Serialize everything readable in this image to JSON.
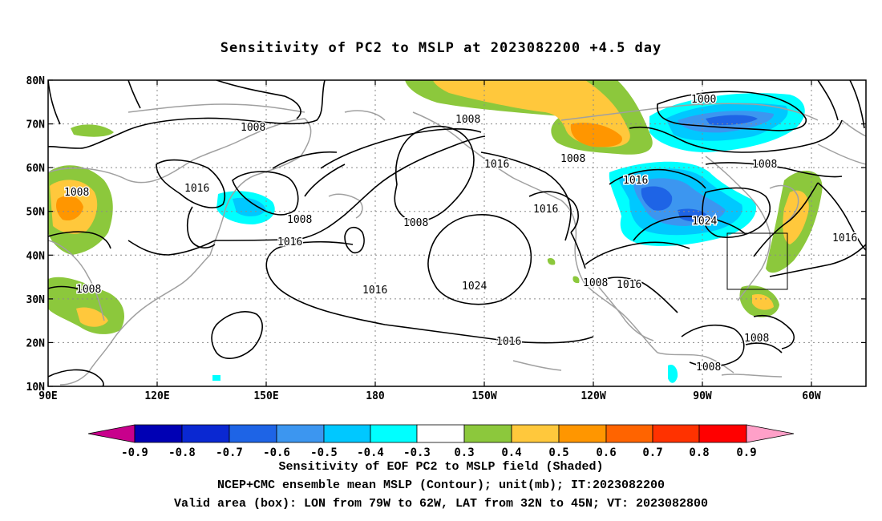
{
  "title": "Sensitivity of PC2 to MSLP at 2023082200 +4.5 day",
  "map": {
    "lon_labels": [
      "90E",
      "120E",
      "150E",
      "180",
      "150W",
      "120W",
      "90W",
      "60W"
    ],
    "lat_labels": [
      "80N",
      "70N",
      "60N",
      "50N",
      "40N",
      "30N",
      "20N",
      "10N"
    ],
    "lon_range": [
      90,
      315
    ],
    "lat_range": [
      10,
      80
    ],
    "valid_box": {
      "lon": [
        281,
        298
      ],
      "lat": [
        32,
        45
      ]
    },
    "contour_labels": [
      "1008",
      "1016",
      "1008",
      "1008",
      "1016",
      "1008",
      "1016",
      "1024",
      "1008",
      "1016",
      "1016",
      "1000",
      "1008",
      "1016",
      "1024",
      "1016",
      "1008",
      "1008",
      "1016",
      "1008",
      "1008"
    ]
  },
  "colorbar": {
    "labels": [
      "-0.9",
      "-0.8",
      "-0.7",
      "-0.6",
      "-0.5",
      "-0.4",
      "-0.3",
      "0.3",
      "0.4",
      "0.5",
      "0.6",
      "0.7",
      "0.8",
      "0.9"
    ],
    "colors": [
      "#c8008c",
      "#0000b4",
      "#0a28d2",
      "#1e64e6",
      "#3c96f0",
      "#00c8ff",
      "#00ffff",
      "#ffffff",
      "#8cc83c",
      "#ffc83c",
      "#ff9600",
      "#ff6400",
      "#ff3200",
      "#ff0000",
      "#ffa0c8"
    ]
  },
  "caption": [
    "Sensitivity of EOF PC2 to MSLP field (Shaded)",
    "NCEP+CMC ensemble mean MSLP (Contour); unit(mb); IT:2023082200",
    "Valid area (box): LON from 79W to 62W, LAT from 32N to 45N; VT: 2023082800"
  ]
}
